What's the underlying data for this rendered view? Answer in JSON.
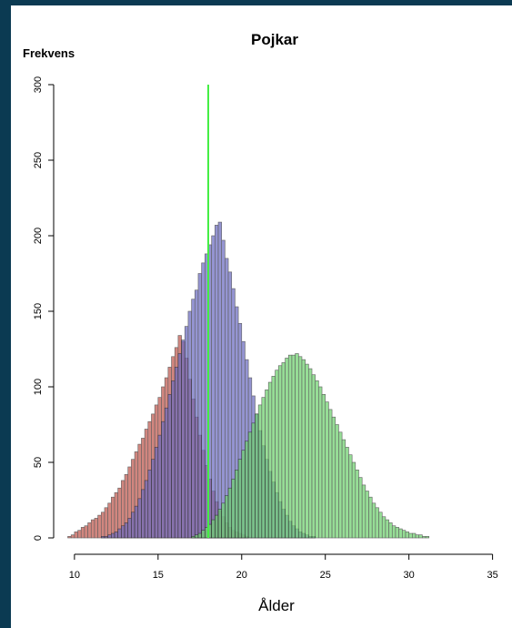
{
  "chart_data": {
    "type": "histogram",
    "title": "Pojkar",
    "xlabel": "Ålder",
    "ylabel": "Frekvens",
    "xlim": [
      9.3,
      36
    ],
    "ylim": [
      0,
      300
    ],
    "x_ticks": [
      10,
      15,
      20,
      25,
      30,
      35
    ],
    "y_ticks": [
      0,
      50,
      100,
      150,
      200,
      250,
      300
    ],
    "bin_width": 0.2,
    "vline": {
      "x": 18,
      "color": "#44ee44"
    },
    "grid": false,
    "series": [
      {
        "color": "#c0584e",
        "bins_start": 9.6,
        "values": [
          1,
          2,
          4,
          5,
          7,
          8,
          10,
          12,
          13,
          15,
          17,
          20,
          23,
          27,
          30,
          33,
          38,
          42,
          47,
          52,
          57,
          62,
          66,
          72,
          77,
          82,
          88,
          93,
          100,
          106,
          113,
          120,
          126,
          134,
          130,
          119,
          105,
          92,
          80,
          68,
          58,
          48,
          39,
          31,
          24,
          18,
          14,
          10,
          7,
          5,
          4,
          3,
          2,
          1
        ]
      },
      {
        "color": "#6b6bc0",
        "bins_start": 11.6,
        "values": [
          1,
          1,
          2,
          3,
          4,
          6,
          8,
          10,
          13,
          17,
          21,
          26,
          32,
          38,
          45,
          52,
          60,
          68,
          77,
          86,
          95,
          104,
          113,
          122,
          131,
          140,
          150,
          158,
          164,
          175,
          182,
          188,
          194,
          200,
          207,
          209,
          197,
          185,
          176,
          165,
          153,
          142,
          130,
          118,
          106,
          94,
          82,
          71,
          61,
          52,
          44,
          37,
          30,
          24,
          19,
          15,
          11,
          8,
          6,
          4,
          3,
          2,
          1,
          1
        ]
      },
      {
        "color": "#6fd16f",
        "bins_start": 17.0,
        "values": [
          1,
          2,
          3,
          5,
          7,
          9,
          12,
          15,
          19,
          23,
          28,
          33,
          39,
          45,
          52,
          58,
          64,
          70,
          76,
          82,
          88,
          93,
          98,
          103,
          107,
          111,
          114,
          116,
          119,
          121,
          121,
          122,
          120,
          118,
          115,
          112,
          108,
          104,
          100,
          95,
          90,
          85,
          80,
          75,
          70,
          65,
          60,
          55,
          50,
          45,
          40,
          35,
          31,
          27,
          23,
          20,
          17,
          14,
          12,
          10,
          8,
          7,
          6,
          5,
          4,
          3,
          3,
          2,
          2,
          1,
          1
        ]
      }
    ]
  }
}
